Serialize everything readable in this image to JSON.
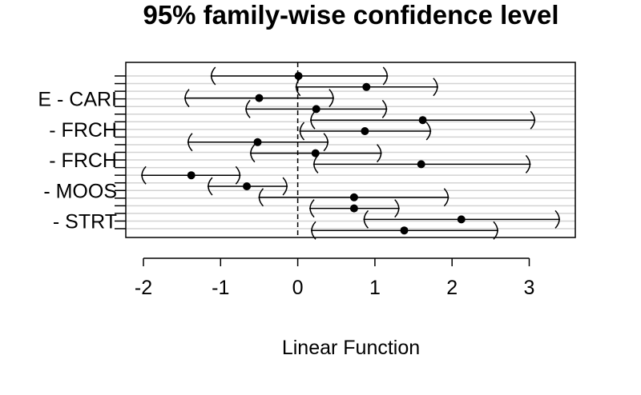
{
  "chart_data": {
    "type": "interval",
    "title": "95% family-wise confidence level",
    "xlabel": "Linear Function",
    "ylabel": "",
    "xlim": [
      -2.2,
      3.6
    ],
    "x_ticks": [
      -2,
      -1,
      0,
      1,
      2,
      3
    ],
    "reference_line": 0,
    "grid": "horizontal",
    "y_tick_labels_visible": [
      {
        "row": 3,
        "label": "E - CARI"
      },
      {
        "row": 7,
        "label": "- FRCH"
      },
      {
        "row": 11,
        "label": "- FRCH"
      },
      {
        "row": 15,
        "label": "- MOOS"
      },
      {
        "row": 19,
        "label": "- STRT"
      }
    ],
    "intervals": [
      {
        "estimate": 0.01,
        "lower": -1.13,
        "upper": 1.17
      },
      {
        "estimate": 0.89,
        "lower": -0.03,
        "upper": 1.82
      },
      {
        "estimate": -0.5,
        "lower": -1.47,
        "upper": 0.47
      },
      {
        "estimate": 0.24,
        "lower": -0.68,
        "upper": 1.16
      },
      {
        "estimate": 1.62,
        "lower": 0.16,
        "upper": 3.08
      },
      {
        "estimate": 0.87,
        "lower": 0.02,
        "upper": 1.73
      },
      {
        "estimate": -0.52,
        "lower": -1.43,
        "upper": 0.4
      },
      {
        "estimate": 0.23,
        "lower": -0.62,
        "upper": 1.09
      },
      {
        "estimate": 1.6,
        "lower": 0.2,
        "upper": 3.02
      },
      {
        "estimate": -1.38,
        "lower": -2.03,
        "upper": -0.74
      },
      {
        "estimate": -0.66,
        "lower": -1.17,
        "upper": -0.13
      },
      {
        "estimate": 0.73,
        "lower": -0.51,
        "upper": 1.96
      },
      {
        "estimate": 0.73,
        "lower": 0.15,
        "upper": 1.32
      },
      {
        "estimate": 2.12,
        "lower": 0.85,
        "upper": 3.4
      },
      {
        "estimate": 1.38,
        "lower": 0.17,
        "upper": 2.6
      }
    ]
  }
}
